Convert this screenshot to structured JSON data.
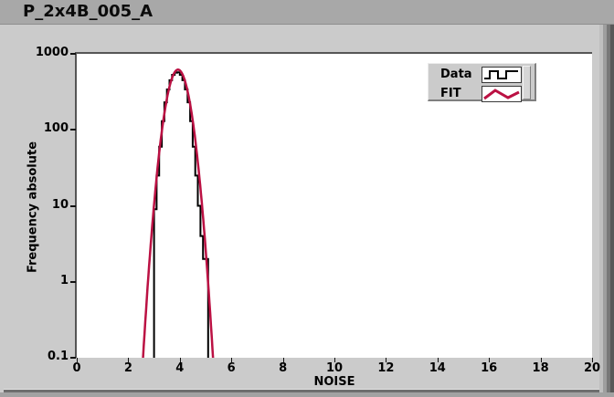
{
  "window": {
    "title": "P_2x4B_005_A"
  },
  "colors": {
    "titlebar": "#a8a8a8",
    "panel": "#cbcbcb",
    "plot_background": "#ffffff",
    "data_series": "#000000",
    "fit_series": "#bb1143"
  },
  "legend": {
    "items": [
      {
        "label": "Data",
        "icon": "square-wave-glyph",
        "color": "#000000"
      },
      {
        "label": "FIT",
        "icon": "zigzag-glyph",
        "color": "#bb1143"
      }
    ]
  },
  "chart_data": {
    "type": "bar",
    "subtype": "histogram-with-gaussian-fit",
    "title": "P_2x4B_005_A",
    "xlabel": "NOISE",
    "ylabel": "Frequency absolute",
    "xlim": [
      0,
      20
    ],
    "x_ticks": [
      0,
      2,
      4,
      6,
      8,
      10,
      12,
      14,
      16,
      18,
      20
    ],
    "y_scale": "log",
    "ylim": [
      0.1,
      1000
    ],
    "y_ticks": [
      "0.1",
      "1",
      "10",
      "100",
      "1000"
    ],
    "grid": false,
    "legend_position": "top-right",
    "series": [
      {
        "name": "Data",
        "type": "step-histogram",
        "color": "#000000",
        "bin_start": 3.0,
        "bin_width": 0.1,
        "counts": [
          9,
          25,
          60,
          130,
          230,
          340,
          450,
          530,
          565,
          570,
          530,
          450,
          340,
          230,
          130,
          60,
          25,
          10,
          4,
          2,
          2
        ]
      },
      {
        "name": "FIT",
        "type": "gaussian-curve",
        "color": "#bb1143",
        "amplitude": 620,
        "mean": 3.93,
        "sigma": 0.325,
        "x_range": [
          2.54,
          5.32
        ]
      }
    ]
  }
}
